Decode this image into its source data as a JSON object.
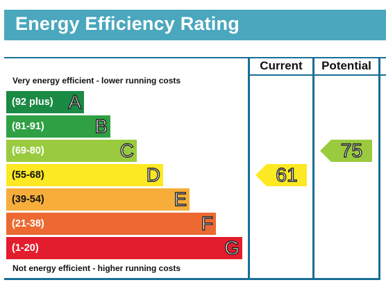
{
  "title": "Energy Efficiency Rating",
  "columns": {
    "current": "Current",
    "potential": "Potential"
  },
  "captions": {
    "top": "Very energy efficient - lower running costs",
    "bottom": "Not energy efficient - higher running costs"
  },
  "chart_data": {
    "type": "bar",
    "title": "Energy Efficiency Rating",
    "bands": [
      {
        "letter": "A",
        "range": "(92 plus)",
        "color": "#1a8a45"
      },
      {
        "letter": "B",
        "range": "(81-91)",
        "color": "#2fa043"
      },
      {
        "letter": "C",
        "range": "(69-80)",
        "color": "#9acb3f"
      },
      {
        "letter": "D",
        "range": "(55-68)",
        "color": "#fde824"
      },
      {
        "letter": "E",
        "range": "(39-54)",
        "color": "#f6ad3a"
      },
      {
        "letter": "F",
        "range": "(21-38)",
        "color": "#ec6a32"
      },
      {
        "letter": "G",
        "range": "(1-20)",
        "color": "#e31d2d"
      }
    ],
    "current": {
      "value": 61,
      "band": "D",
      "color": "#fde824"
    },
    "potential": {
      "value": 75,
      "band": "C",
      "color": "#9acb3f"
    }
  }
}
